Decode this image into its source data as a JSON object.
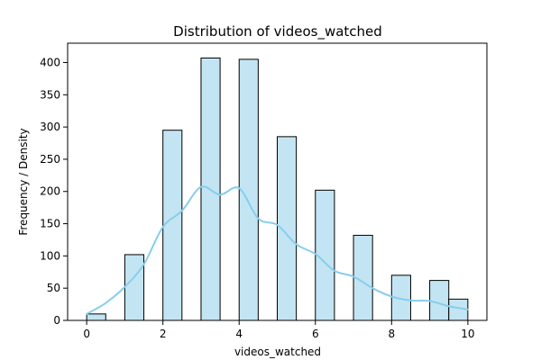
{
  "chart_data": {
    "type": "bar",
    "title": "Distribution of videos_watched",
    "xlabel": "videos_watched",
    "ylabel": "Frequency / Density",
    "xlim": [
      -0.5,
      10.5
    ],
    "ylim": [
      0,
      430
    ],
    "x_ticks": [
      0,
      2,
      4,
      6,
      8,
      10
    ],
    "y_ticks": [
      0,
      50,
      100,
      150,
      200,
      250,
      300,
      350,
      400
    ],
    "bar_fill": "#c3e5f3",
    "bar_edge": "#000000",
    "kde_color": "#87ceeb",
    "bins": [
      {
        "x0": 0.0,
        "x1": 0.5,
        "value": 10
      },
      {
        "x0": 1.0,
        "x1": 1.5,
        "value": 102
      },
      {
        "x0": 2.0,
        "x1": 2.5,
        "value": 295
      },
      {
        "x0": 3.0,
        "x1": 3.5,
        "value": 407
      },
      {
        "x0": 4.0,
        "x1": 4.5,
        "value": 405
      },
      {
        "x0": 5.0,
        "x1": 5.5,
        "value": 285
      },
      {
        "x0": 6.0,
        "x1": 6.5,
        "value": 202
      },
      {
        "x0": 7.0,
        "x1": 7.5,
        "value": 132
      },
      {
        "x0": 8.0,
        "x1": 8.5,
        "value": 70
      },
      {
        "x0": 9.0,
        "x1": 9.5,
        "value": 62
      },
      {
        "x0": 9.5,
        "x1": 10.0,
        "value": 33
      }
    ],
    "kde": {
      "x": [
        0,
        0.5,
        1,
        1.5,
        2,
        2.5,
        3,
        3.5,
        4,
        4.5,
        5,
        5.5,
        6,
        6.5,
        7,
        7.5,
        8,
        8.5,
        9,
        9.5,
        10
      ],
      "y": [
        10,
        27,
        52,
        87,
        145,
        170,
        207,
        195,
        205,
        158,
        148,
        118,
        103,
        77,
        68,
        50,
        37,
        31,
        30,
        22,
        17
      ]
    }
  }
}
